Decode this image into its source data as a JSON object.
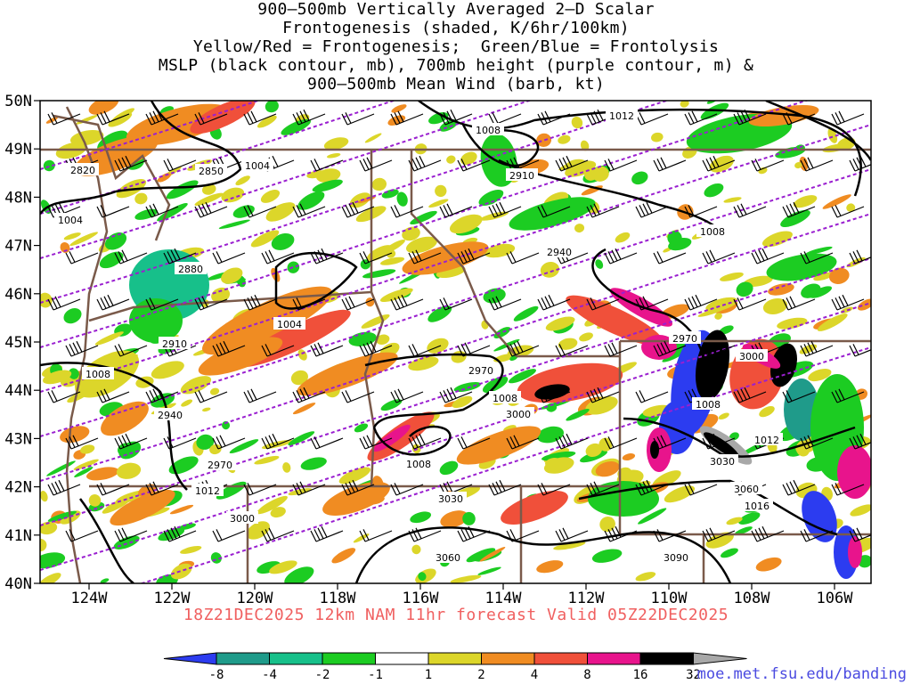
{
  "title_lines": [
    "900—500mb Vertically Averaged 2—D Scalar",
    "Frontogenesis (shaded, K/6hr/100km)",
    "Yellow/Red = Frontogenesis;  Green/Blue = Frontolysis",
    "MSLP (black contour, mb), 700mb height (purple contour, m) &",
    "900—500mb Mean Wind (barb, kt)"
  ],
  "lat_labels": [
    "50N",
    "49N",
    "48N",
    "47N",
    "46N",
    "45N",
    "44N",
    "43N",
    "42N",
    "41N",
    "40N"
  ],
  "lon_labels": [
    "124W",
    "122W",
    "120W",
    "118W",
    "116W",
    "114W",
    "112W",
    "110W",
    "108W",
    "106W"
  ],
  "valid_text": "18Z21DEC2025 12km NAM 11hr forecast Valid 05Z22DEC2025",
  "credit": "moe.met.fsu.edu/banding",
  "colorbar": {
    "labels": [
      "-8",
      "-4",
      "-2",
      "-1",
      "1",
      "2",
      "4",
      "8",
      "16",
      "32"
    ],
    "colors": [
      "#2c3cf0",
      "#1f9b8a",
      "#17c08a",
      "#1ccc22",
      "#ffffff",
      "#dcd62a",
      "#f08c22",
      "#f0503a",
      "#e8148c",
      "#000000",
      "#a8a8a8"
    ]
  },
  "mslp_labels": [
    "1012",
    "1008",
    "1004",
    "1004",
    "1004",
    "1008",
    "1008",
    "1008",
    "1008",
    "1008",
    "1012",
    "1012",
    "1016"
  ],
  "height_labels": [
    "2820",
    "2850",
    "2880",
    "2910",
    "2910",
    "2940",
    "2940",
    "2970",
    "2970",
    "2970",
    "3000",
    "3000",
    "3000",
    "3030",
    "3030",
    "3060",
    "3060",
    "3090"
  ],
  "colors": {
    "mslp": "#000000",
    "height": "#9a1fd0",
    "borders": "#7a5a4a",
    "barbs": "#000000"
  }
}
